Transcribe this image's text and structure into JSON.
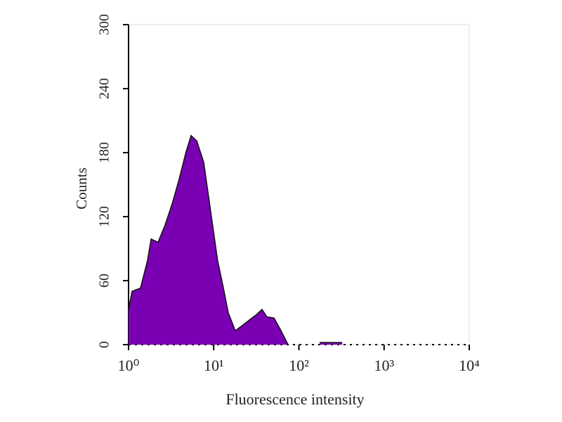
{
  "chart_data": {
    "type": "area",
    "xlabel": "Fluorescence intensity",
    "ylabel": "Counts",
    "x": [
      1,
      1.1,
      1.38,
      1.67,
      1.84,
      2.22,
      2.68,
      3.25,
      3.92,
      4.74,
      5.42,
      6.31,
      7.63,
      9.2,
      11.1,
      13,
      14.8,
      17.9,
      21.7,
      26.1,
      31.6,
      36.9,
      42.1,
      51,
      61.7,
      74.5,
      100,
      175,
      322
    ],
    "values": [
      33,
      50,
      53,
      79,
      99,
      96,
      112,
      132,
      155,
      181,
      196,
      191,
      171,
      125,
      79,
      53,
      30,
      13,
      18,
      23,
      28,
      33,
      26,
      25,
      13,
      0,
      null,
      2,
      2
    ],
    "color": "#7a00b4",
    "xscale": "log",
    "xlim": [
      1,
      10000
    ],
    "xticks": [
      {
        "value": 1,
        "label": "10⁰"
      },
      {
        "value": 10,
        "label": "10¹"
      },
      {
        "value": 100,
        "label": "10²"
      },
      {
        "value": 1000,
        "label": "10³"
      },
      {
        "value": 10000,
        "label": "10⁴"
      }
    ],
    "ylim": [
      0,
      300
    ],
    "yticks": [
      0,
      60,
      120,
      180,
      240,
      300
    ]
  }
}
